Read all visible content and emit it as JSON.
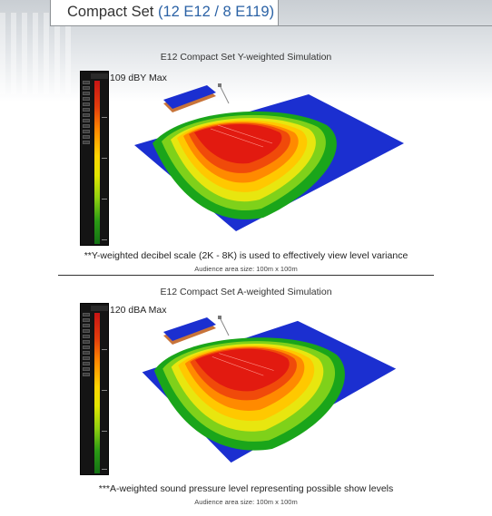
{
  "header": {
    "title_prefix": "Compact Set",
    "title_paren": "(12 E12 / 8 E119)"
  },
  "simulations": [
    {
      "title": "E12 Compact Set Y-weighted Simulation",
      "max_label": "109 dBY Max",
      "caption": "**Y-weighted decibel scale (2K - 8K) is used to effectively view level variance",
      "audience": "Audience area size: 100m x 100m"
    },
    {
      "title": "E12 Compact Set A-weighted Simulation",
      "max_label": "120 dBA Max",
      "caption": "***A-weighted sound pressure level representing possible show levels",
      "audience": "Audience area size: 100m x 100m"
    }
  ],
  "colors": {
    "title_accent": "#2c63a6",
    "floor_blue": "#1b2fd0",
    "hot_red": "#e21a10",
    "meter_bg": "#141414"
  }
}
